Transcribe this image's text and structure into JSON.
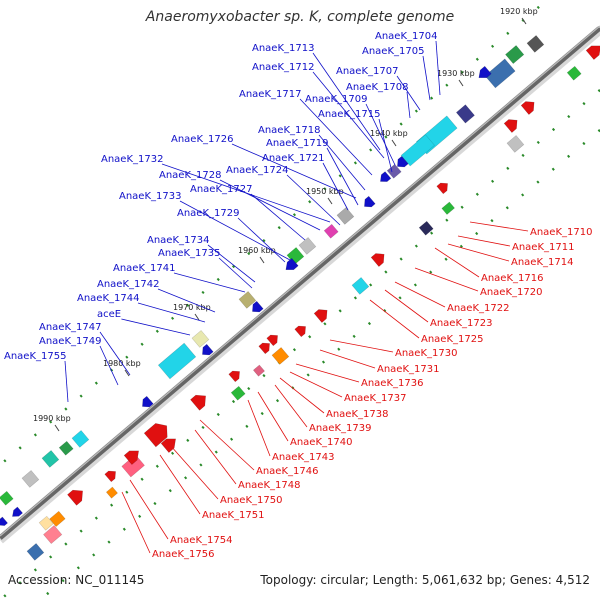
{
  "title": "Anaeromyxobacter sp. K, complete genome",
  "accession": "Accession: NC_011145",
  "topology": "Topology: circular; Length: 5,061,632 bp; Genes: 4,512",
  "colors": {
    "plus": "#1010c8",
    "minus": "#e01010",
    "backbone": "#777777",
    "tick": "#2a8a2a"
  },
  "ticks": [
    "1920 kbp",
    "1930 kbp",
    "1940 kbp",
    "1950 kbp",
    "1960 kbp",
    "1970 kbp",
    "1980 kbp",
    "1990 kbp"
  ],
  "plus_labels": [
    "AnaeK_1704",
    "AnaeK_1705",
    "AnaeK_1713",
    "AnaeK_1712",
    "AnaeK_1707",
    "AnaeK_1708",
    "AnaeK_1717",
    "AnaeK_1709",
    "AnaeK_1715",
    "AnaeK_1718",
    "AnaeK_1726",
    "AnaeK_1719",
    "AnaeK_1721",
    "AnaeK_1732",
    "AnaeK_1728",
    "AnaeK_1724",
    "AnaeK_1727",
    "AnaeK_1733",
    "AnaeK_1729",
    "AnaeK_1734",
    "AnaeK_1735",
    "AnaeK_1741",
    "AnaeK_1742",
    "AnaeK_1744",
    "aceE",
    "AnaeK_1747",
    "AnaeK_1749",
    "AnaeK_1755"
  ],
  "minus_labels": [
    "AnaeK_1710",
    "AnaeK_1711",
    "AnaeK_1714",
    "AnaeK_1716",
    "AnaeK_1720",
    "AnaeK_1722",
    "AnaeK_1723",
    "AnaeK_1725",
    "AnaeK_1730",
    "AnaeK_1731",
    "AnaeK_1736",
    "AnaeK_1737",
    "AnaeK_1738",
    "AnaeK_1739",
    "AnaeK_1740",
    "AnaeK_1743",
    "AnaeK_1746",
    "AnaeK_1748",
    "AnaeK_1750",
    "AnaeK_1751",
    "AnaeK_1754",
    "AnaeK_1756"
  ]
}
